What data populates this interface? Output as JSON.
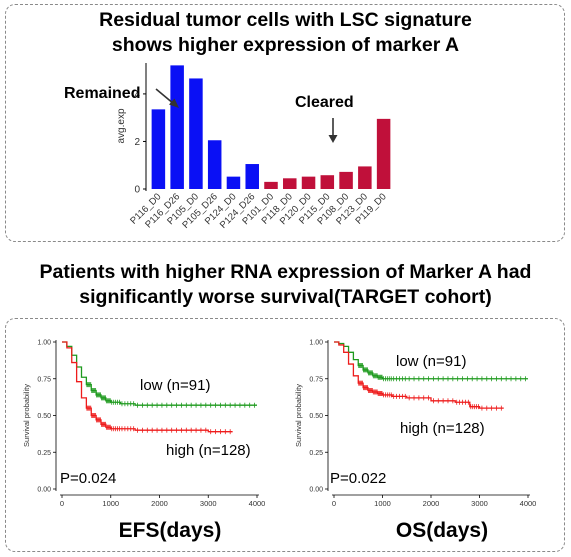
{
  "top_panel": {
    "heading_line1": "Residual tumor cells with LSC signature",
    "heading_line2": "shows higher expression of marker A"
  },
  "bottom_panel": {
    "heading_line1": "Patients with higher RNA expression of Marker A had",
    "heading_line2": "significantly worse survival(TARGET cohort)"
  },
  "colors": {
    "blue": "#0a10f5",
    "red": "#c0103a",
    "low_curve": "#1e9a1e",
    "high_curve": "#ee1c1c"
  },
  "chart_data": [
    {
      "type": "bar",
      "ylabel": "avg.exp",
      "ylim": [
        0,
        5.3
      ],
      "yticks": [
        0,
        2,
        4
      ],
      "categories": [
        "P116_D0",
        "P116_D26",
        "P105_D0",
        "P105_D26",
        "P124_D0",
        "P124_D26",
        "P101_D0",
        "P118_D0",
        "P120_D0",
        "P115_D0",
        "P108_D0",
        "P123_D0",
        "P119_D0"
      ],
      "values": [
        3.35,
        5.2,
        4.65,
        2.05,
        0.52,
        1.05,
        0.3,
        0.45,
        0.52,
        0.58,
        0.72,
        0.95,
        2.95
      ],
      "group": [
        "Remained",
        "Remained",
        "Remained",
        "Remained",
        "Remained",
        "Remained",
        "Cleared",
        "Cleared",
        "Cleared",
        "Cleared",
        "Cleared",
        "Cleared",
        "Cleared"
      ],
      "annotations": [
        "Remained",
        "Cleared"
      ]
    },
    {
      "type": "line",
      "xlabel": "EFS(days)",
      "ylabel": "Survival probability",
      "xlim": [
        0,
        4000
      ],
      "ylim": [
        0,
        1
      ],
      "xticks": [
        0,
        1000,
        2000,
        3000,
        4000
      ],
      "yticks": [
        "0.00",
        "0.25",
        "0.50",
        "0.75",
        "1.00"
      ],
      "pvalue": "P=0.024",
      "series": [
        {
          "name": "low (n=91)",
          "x": [
            0,
            100,
            200,
            300,
            400,
            500,
            600,
            700,
            800,
            900,
            1000,
            1200,
            1500,
            2000,
            2500,
            3000,
            3500,
            4000
          ],
          "y": [
            1.0,
            0.97,
            0.91,
            0.83,
            0.76,
            0.71,
            0.67,
            0.64,
            0.62,
            0.6,
            0.59,
            0.58,
            0.57,
            0.57,
            0.57,
            0.57,
            0.57,
            0.57
          ]
        },
        {
          "name": "high (n=128)",
          "x": [
            0,
            100,
            200,
            300,
            400,
            500,
            600,
            700,
            800,
            900,
            1000,
            1200,
            1500,
            2000,
            2500,
            3000,
            3500
          ],
          "y": [
            1.0,
            0.96,
            0.86,
            0.73,
            0.62,
            0.55,
            0.5,
            0.47,
            0.44,
            0.42,
            0.41,
            0.41,
            0.4,
            0.4,
            0.4,
            0.39,
            0.39
          ]
        }
      ]
    },
    {
      "type": "line",
      "xlabel": "OS(days)",
      "ylabel": "Survival probability",
      "xlim": [
        0,
        4000
      ],
      "ylim": [
        0,
        1
      ],
      "xticks": [
        0,
        1000,
        2000,
        3000,
        4000
      ],
      "yticks": [
        "0.00",
        "0.25",
        "0.50",
        "0.75",
        "1.00"
      ],
      "pvalue": "P=0.022",
      "series": [
        {
          "name": "low (n=91)",
          "x": [
            0,
            100,
            200,
            300,
            400,
            500,
            600,
            700,
            800,
            900,
            1000,
            1200,
            1500,
            2000,
            2500,
            3000,
            3500,
            4000
          ],
          "y": [
            1.0,
            0.99,
            0.97,
            0.93,
            0.88,
            0.84,
            0.81,
            0.79,
            0.77,
            0.76,
            0.75,
            0.75,
            0.75,
            0.75,
            0.75,
            0.75,
            0.75,
            0.75
          ]
        },
        {
          "name": "high (n=128)",
          "x": [
            0,
            100,
            200,
            300,
            400,
            500,
            600,
            700,
            800,
            900,
            1000,
            1200,
            1500,
            2000,
            2500,
            2800,
            3000,
            3500
          ],
          "y": [
            1.0,
            0.98,
            0.93,
            0.85,
            0.77,
            0.72,
            0.69,
            0.67,
            0.66,
            0.65,
            0.64,
            0.63,
            0.62,
            0.6,
            0.59,
            0.56,
            0.55,
            0.55
          ]
        }
      ]
    }
  ]
}
